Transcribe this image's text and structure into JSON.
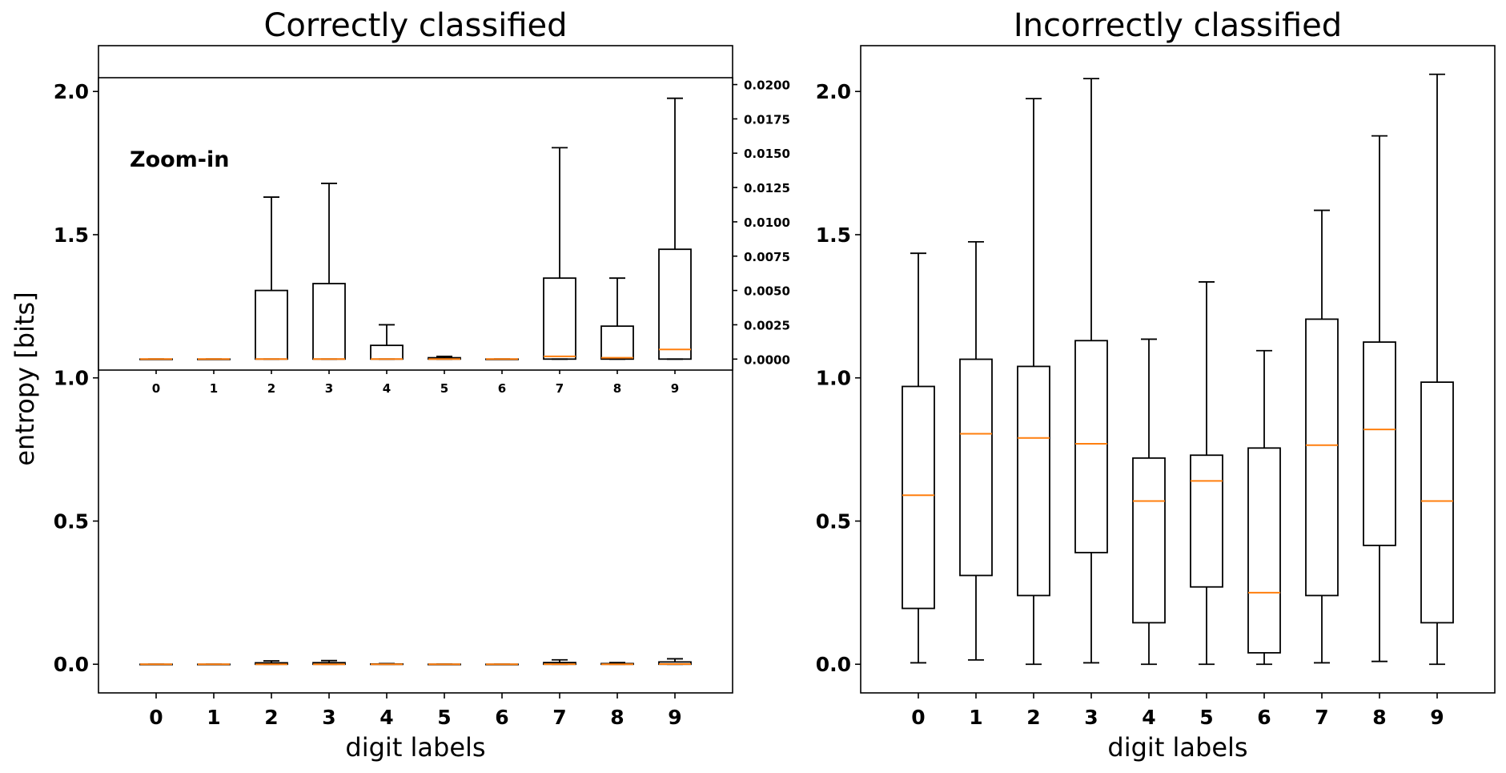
{
  "chart_data": [
    {
      "type": "box",
      "title": "Correctly classified",
      "xlabel": "digit labels",
      "ylabel": "entropy [bits]",
      "ylim": [
        -0.1,
        2.16
      ],
      "yticks": [
        "0.0",
        "0.5",
        "1.0",
        "1.5",
        "2.0"
      ],
      "categories": [
        "0",
        "1",
        "2",
        "3",
        "4",
        "5",
        "6",
        "7",
        "8",
        "9"
      ],
      "boxes": [
        {
          "label": "0",
          "min": 0,
          "q1": 0,
          "median": 0,
          "q3": 0,
          "max": 0
        },
        {
          "label": "1",
          "min": 0,
          "q1": 0,
          "median": 0,
          "q3": 0,
          "max": 0
        },
        {
          "label": "2",
          "min": 0,
          "q1": 0,
          "median": 0,
          "q3": 0.005,
          "max": 0.0118
        },
        {
          "label": "3",
          "min": 0,
          "q1": 0,
          "median": 0,
          "q3": 0.0055,
          "max": 0.0128
        },
        {
          "label": "4",
          "min": 0,
          "q1": 0,
          "median": 0,
          "q3": 0.001,
          "max": 0.0025
        },
        {
          "label": "5",
          "min": 0,
          "q1": 0,
          "median": 0,
          "q3": 0.0001,
          "max": 0.0002
        },
        {
          "label": "6",
          "min": 0,
          "q1": 0,
          "median": 0,
          "q3": 0,
          "max": 0
        },
        {
          "label": "7",
          "min": 0,
          "q1": 0,
          "median": 0.0002,
          "q3": 0.0059,
          "max": 0.0154
        },
        {
          "label": "8",
          "min": 0,
          "q1": 0,
          "median": 0.0001,
          "q3": 0.0024,
          "max": 0.0059
        },
        {
          "label": "9",
          "min": 0,
          "q1": 0,
          "median": 0.0007,
          "q3": 0.008,
          "max": 0.019
        }
      ],
      "inset": {
        "annotation": "Zoom-in",
        "ylim": [
          -0.0008,
          0.0205
        ],
        "yticks": [
          "0.0000",
          "0.0025",
          "0.0050",
          "0.0075",
          "0.0100",
          "0.0125",
          "0.0150",
          "0.0175",
          "0.0200"
        ],
        "categories": [
          "0",
          "1",
          "2",
          "3",
          "4",
          "5",
          "6",
          "7",
          "8",
          "9"
        ],
        "yaxis_position": "right"
      }
    },
    {
      "type": "box",
      "title": "Incorrectly classified",
      "xlabel": "digit labels",
      "ylabel": "",
      "ylim": [
        -0.1,
        2.16
      ],
      "yticks": [
        "0.0",
        "0.5",
        "1.0",
        "1.5",
        "2.0"
      ],
      "categories": [
        "0",
        "1",
        "2",
        "3",
        "4",
        "5",
        "6",
        "7",
        "8",
        "9"
      ],
      "boxes": [
        {
          "label": "0",
          "min": 0.005,
          "q1": 0.195,
          "median": 0.59,
          "q3": 0.97,
          "max": 1.435
        },
        {
          "label": "1",
          "min": 0.015,
          "q1": 0.31,
          "median": 0.805,
          "q3": 1.065,
          "max": 1.475
        },
        {
          "label": "2",
          "min": 0,
          "q1": 0.24,
          "median": 0.79,
          "q3": 1.04,
          "max": 1.975
        },
        {
          "label": "3",
          "min": 0.005,
          "q1": 0.39,
          "median": 0.77,
          "q3": 1.13,
          "max": 2.045
        },
        {
          "label": "4",
          "min": 0,
          "q1": 0.145,
          "median": 0.57,
          "q3": 0.72,
          "max": 1.135
        },
        {
          "label": "5",
          "min": 0,
          "q1": 0.27,
          "median": 0.64,
          "q3": 0.73,
          "max": 1.335
        },
        {
          "label": "6",
          "min": 0,
          "q1": 0.04,
          "median": 0.25,
          "q3": 0.755,
          "max": 1.095
        },
        {
          "label": "7",
          "min": 0.005,
          "q1": 0.24,
          "median": 0.765,
          "q3": 1.205,
          "max": 1.585
        },
        {
          "label": "8",
          "min": 0.01,
          "q1": 0.415,
          "median": 0.82,
          "q3": 1.125,
          "max": 1.845
        },
        {
          "label": "9",
          "min": 0,
          "q1": 0.145,
          "median": 0.57,
          "q3": 0.985,
          "max": 2.06
        }
      ]
    }
  ]
}
